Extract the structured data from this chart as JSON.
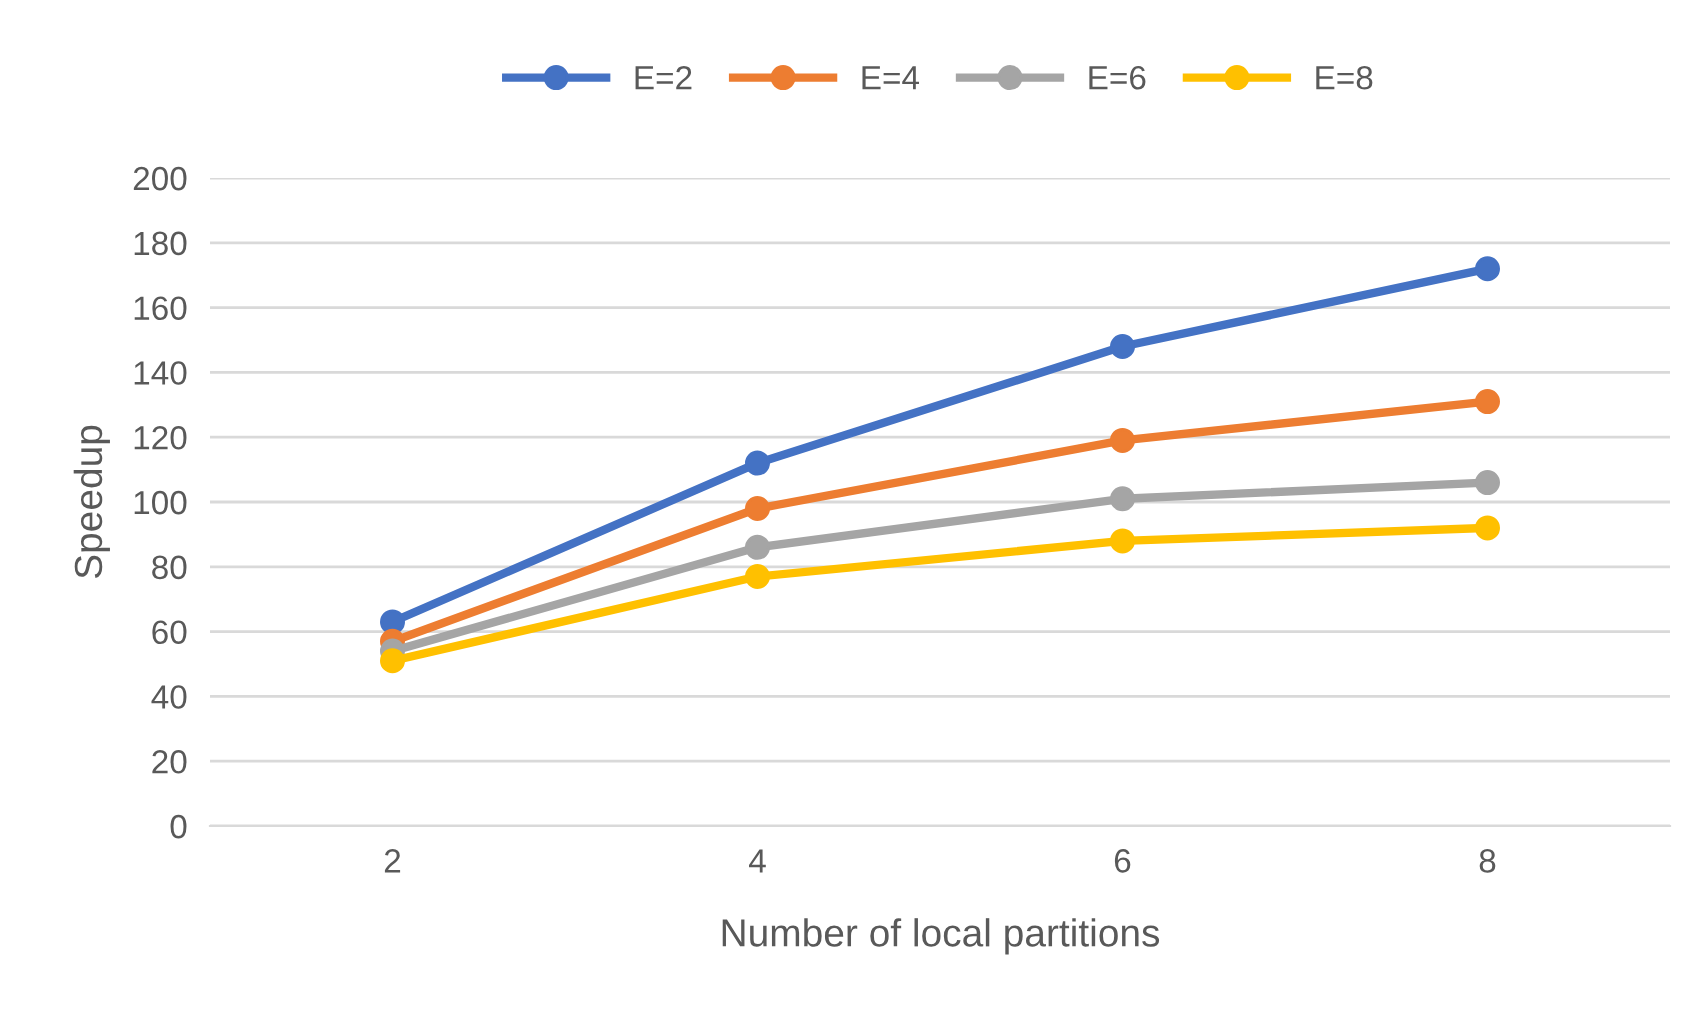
{
  "chart_data": {
    "type": "line",
    "xlabel": "Number of local partitions",
    "ylabel": "Speedup",
    "categories": [
      "2",
      "4",
      "6",
      "8"
    ],
    "series": [
      {
        "name": "E=2",
        "color": "#4472c4",
        "values": [
          63,
          112,
          148,
          172
        ]
      },
      {
        "name": "E=4",
        "color": "#ed7d31",
        "values": [
          57,
          98,
          119,
          131
        ]
      },
      {
        "name": "E=6",
        "color": "#a5a5a5",
        "values": [
          54,
          86,
          101,
          106
        ]
      },
      {
        "name": "E=8",
        "color": "#ffc000",
        "values": [
          51,
          77,
          88,
          92
        ]
      }
    ],
    "ylim": [
      0,
      200
    ],
    "yticks": [
      0,
      20,
      40,
      60,
      80,
      100,
      120,
      140,
      160,
      180,
      200
    ],
    "grid": "y",
    "legend": "top",
    "marker": "circle",
    "line_style": "solid"
  }
}
